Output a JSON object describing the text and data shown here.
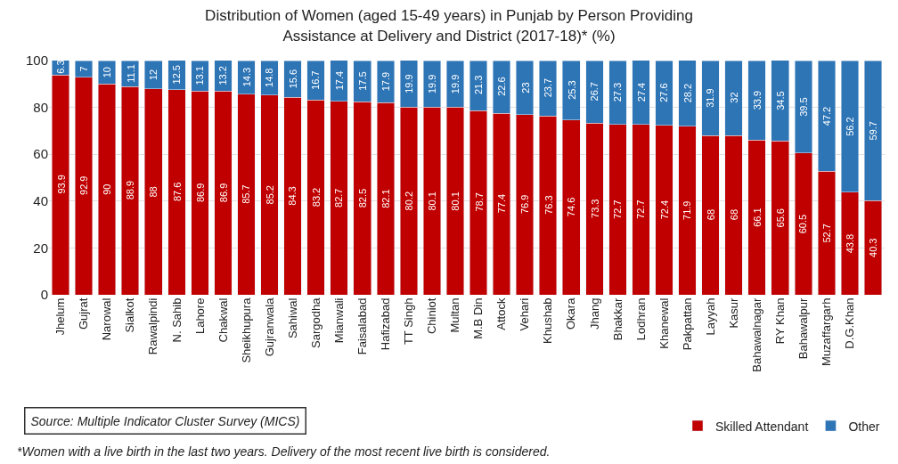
{
  "chart_data": {
    "type": "bar",
    "stacked": true,
    "title": "Distribution of Women (aged 15-49 years) in Punjab by Person Providing\nAssistance at Delivery and District (2017-18)* (%)",
    "categories": [
      "Jhelum",
      "Gujrat",
      "Narowal",
      "Sialkot",
      "Rawalpindi",
      "N. Sahib",
      "Lahore",
      "Chakwal",
      "Sheikhupura",
      "Gujranwala",
      "Sahiwal",
      "Sargodha",
      "Mianwali",
      "Faisalabad",
      "Hafizabad",
      "TT Singh",
      "Chiniot",
      "Multan",
      "M.B Din",
      "Attock",
      "Vehari",
      "Khushab",
      "Okara",
      "Jhang",
      "Bhakkar",
      "Lodhran",
      "Khanewal",
      "Pakpattan",
      "Layyah",
      "Kasur",
      "Bahawalnagar",
      "RY Khan",
      "Bahawalpur",
      "Muzaffargarh",
      "D.G.Khan",
      null
    ],
    "series": [
      {
        "name": "Skilled Attendant",
        "color": "#c00000",
        "values": [
          93.9,
          92.9,
          90,
          88.9,
          88,
          87.6,
          86.9,
          86.9,
          85.7,
          85.2,
          84.3,
          83.2,
          82.7,
          82.5,
          82.1,
          80.2,
          80.1,
          80.1,
          78.7,
          77.4,
          76.9,
          76.3,
          74.6,
          73.3,
          72.7,
          72.7,
          72.4,
          71.9,
          68,
          68,
          66.1,
          65.6,
          60.5,
          52.7,
          43.8,
          40.3
        ]
      },
      {
        "name": "Other",
        "color": "#2e75b6",
        "values": [
          6.3,
          7,
          10,
          11.1,
          12,
          12.5,
          13.1,
          13.2,
          14.3,
          14.8,
          15.6,
          16.7,
          17.4,
          17.5,
          17.9,
          19.9,
          19.9,
          19.9,
          21.3,
          22.6,
          23,
          23.7,
          25.3,
          26.7,
          27.3,
          27.4,
          27.6,
          28.2,
          31.9,
          32,
          33.9,
          34.5,
          39.5,
          47.2,
          56.2,
          59.7
        ]
      }
    ],
    "ylim": [
      0,
      100
    ],
    "yticks": [
      0,
      20,
      40,
      60,
      80,
      100
    ],
    "grid": "y",
    "legend": "bottom right",
    "data_labels": true,
    "annotations": [
      "Source: Multiple Indicator Cluster Survey (MICS)",
      "*Women with a live birth in the last two years. Delivery of the most recent live birth is considered."
    ]
  }
}
